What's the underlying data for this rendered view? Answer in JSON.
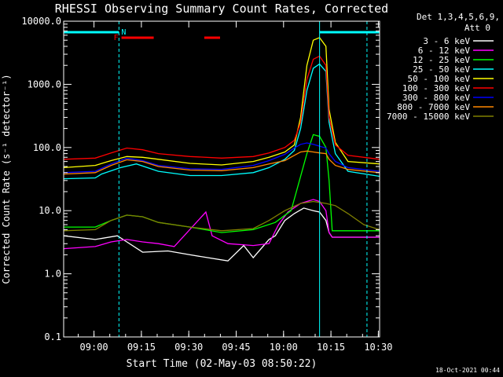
{
  "chart_data": {
    "type": "line",
    "title": "RHESSI Observing Summary Count Rates, Corrected",
    "xlabel": "Start Time (02-May-03 08:50:22)",
    "ylabel": "Corrected Count Rate (s⁻¹ detector⁻¹)",
    "x_unit": "minutes since 08:50:22",
    "xlim": [
      0,
      100
    ],
    "ylim": [
      0.1,
      10000
    ],
    "yscale": "log",
    "x_ticks": [
      {
        "label": "09:00",
        "value": 9.6
      },
      {
        "label": "09:15",
        "value": 24.6
      },
      {
        "label": "09:30",
        "value": 39.6
      },
      {
        "label": "09:45",
        "value": 54.6
      },
      {
        "label": "10:00",
        "value": 69.6
      },
      {
        "label": "10:15",
        "value": 84.6
      },
      {
        "label": "10:30",
        "value": 99.6
      }
    ],
    "y_ticks": [
      {
        "label": "0.1",
        "value": 0.1
      },
      {
        "label": "1.0",
        "value": 1
      },
      {
        "label": "10.0",
        "value": 10
      },
      {
        "label": "100.0",
        "value": 100
      },
      {
        "label": "1000.0",
        "value": 1000
      },
      {
        "label": "10000.0",
        "value": 10000
      }
    ],
    "legend_header": [
      "Det 1,3,4,5,6,9,",
      "Att 0"
    ],
    "legend_position": "top-right, outside plot",
    "series": [
      {
        "name": "3 - 6 keV",
        "color": "#ffffff",
        "x": [
          0,
          10,
          17,
          20,
          25,
          33,
          40,
          52,
          57,
          60,
          65,
          67,
          70,
          73,
          76,
          79,
          81,
          83,
          84,
          85,
          100
        ],
        "y": [
          4,
          3.5,
          4,
          3.2,
          2.2,
          2.3,
          2,
          1.6,
          2.8,
          1.8,
          3.5,
          4,
          7,
          9,
          11,
          10,
          9.5,
          7,
          4.5,
          3.8,
          3.8
        ]
      },
      {
        "name": "6 - 12 keV",
        "color": "#ff00ff",
        "x": [
          0,
          10,
          15,
          20,
          25,
          30,
          35,
          45,
          47,
          52,
          60,
          65,
          68,
          71,
          75,
          79,
          81,
          83,
          84,
          85,
          100
        ],
        "y": [
          2.5,
          2.7,
          3.2,
          3.5,
          3.2,
          3,
          2.7,
          9.5,
          4,
          3,
          2.8,
          3,
          6,
          9.5,
          13,
          15,
          14,
          10,
          4.5,
          3.8,
          3.8
        ]
      },
      {
        "name": "12 - 25 keV",
        "color": "#00ff00",
        "x": [
          0,
          10,
          15,
          20,
          25,
          30,
          40,
          50,
          60,
          67,
          72,
          77,
          79,
          81,
          83,
          84,
          85,
          100
        ],
        "y": [
          5.5,
          5.5,
          7,
          8.5,
          8,
          6.5,
          5.5,
          4.5,
          5,
          6.5,
          10,
          80,
          160,
          150,
          100,
          30,
          4.8,
          4.8
        ]
      },
      {
        "name": "25 - 50 keV",
        "color": "#00ffff",
        "x": [
          0,
          10,
          12,
          18,
          23,
          30,
          40,
          50,
          60,
          65,
          70,
          73,
          75,
          77,
          79,
          81,
          83,
          84,
          86,
          90,
          100
        ],
        "y": [
          32,
          33,
          38,
          48,
          55,
          42,
          36,
          36,
          40,
          48,
          65,
          90,
          200,
          800,
          1800,
          2100,
          1600,
          250,
          80,
          42,
          35
        ]
      },
      {
        "name": "50 - 100 keV",
        "color": "#ffff00",
        "x": [
          0,
          10,
          15,
          20,
          25,
          30,
          40,
          50,
          60,
          65,
          70,
          73,
          75,
          77,
          79,
          81,
          83,
          84,
          86,
          90,
          100
        ],
        "y": [
          48,
          52,
          62,
          72,
          70,
          65,
          56,
          53,
          60,
          70,
          85,
          110,
          300,
          2000,
          5000,
          5500,
          4000,
          400,
          120,
          60,
          55
        ]
      },
      {
        "name": "100 - 300 keV",
        "color": "#ff0000",
        "x": [
          0,
          10,
          15,
          20,
          25,
          30,
          40,
          50,
          60,
          65,
          70,
          73,
          75,
          77,
          79,
          81,
          83,
          84,
          86,
          90,
          100
        ],
        "y": [
          65,
          68,
          82,
          98,
          92,
          80,
          72,
          68,
          72,
          82,
          100,
          130,
          250,
          1200,
          2500,
          2800,
          2000,
          300,
          110,
          75,
          65
        ]
      },
      {
        "name": "300 - 800 keV",
        "color": "#0000ff",
        "x": [
          0,
          10,
          15,
          20,
          25,
          30,
          40,
          50,
          60,
          65,
          70,
          73,
          75,
          77,
          79,
          81,
          83,
          84,
          86,
          90,
          100
        ],
        "y": [
          40,
          42,
          55,
          68,
          62,
          52,
          46,
          45,
          52,
          62,
          78,
          98,
          112,
          118,
          112,
          105,
          98,
          80,
          60,
          48,
          42
        ]
      },
      {
        "name": "800 - 7000 keV",
        "color": "#ff8800",
        "x": [
          0,
          10,
          15,
          20,
          25,
          30,
          40,
          50,
          60,
          65,
          70,
          73,
          75,
          77,
          79,
          81,
          83,
          84,
          86,
          90,
          100
        ],
        "y": [
          38,
          40,
          52,
          64,
          60,
          50,
          44,
          43,
          48,
          55,
          62,
          75,
          85,
          88,
          85,
          82,
          80,
          65,
          52,
          45,
          40
        ]
      },
      {
        "name": "7000 - 15000 keV",
        "color": "#808000",
        "x": [
          0,
          10,
          15,
          20,
          25,
          30,
          40,
          50,
          60,
          65,
          70,
          75,
          79,
          83,
          86,
          90,
          95,
          100
        ],
        "y": [
          4.8,
          5,
          7,
          8.5,
          8,
          6.5,
          5.5,
          4.8,
          5.2,
          7,
          10,
          13,
          14,
          13,
          12,
          9,
          6,
          5
        ]
      }
    ],
    "annotations": {
      "night_label": "N",
      "flare_label": "F",
      "night_color": "#00ffff",
      "flare_color": "#ff0000",
      "night_bars": [
        [
          0,
          17.5
        ],
        [
          81,
          100
        ]
      ],
      "flare_bars": [
        [
          18.3,
          28.5
        ],
        [
          44.5,
          49.5
        ]
      ],
      "vlines_dashed": [
        17.5,
        96
      ],
      "vline_solid": 81
    },
    "footer_timestamp": "18-Oct-2021 00:44"
  }
}
